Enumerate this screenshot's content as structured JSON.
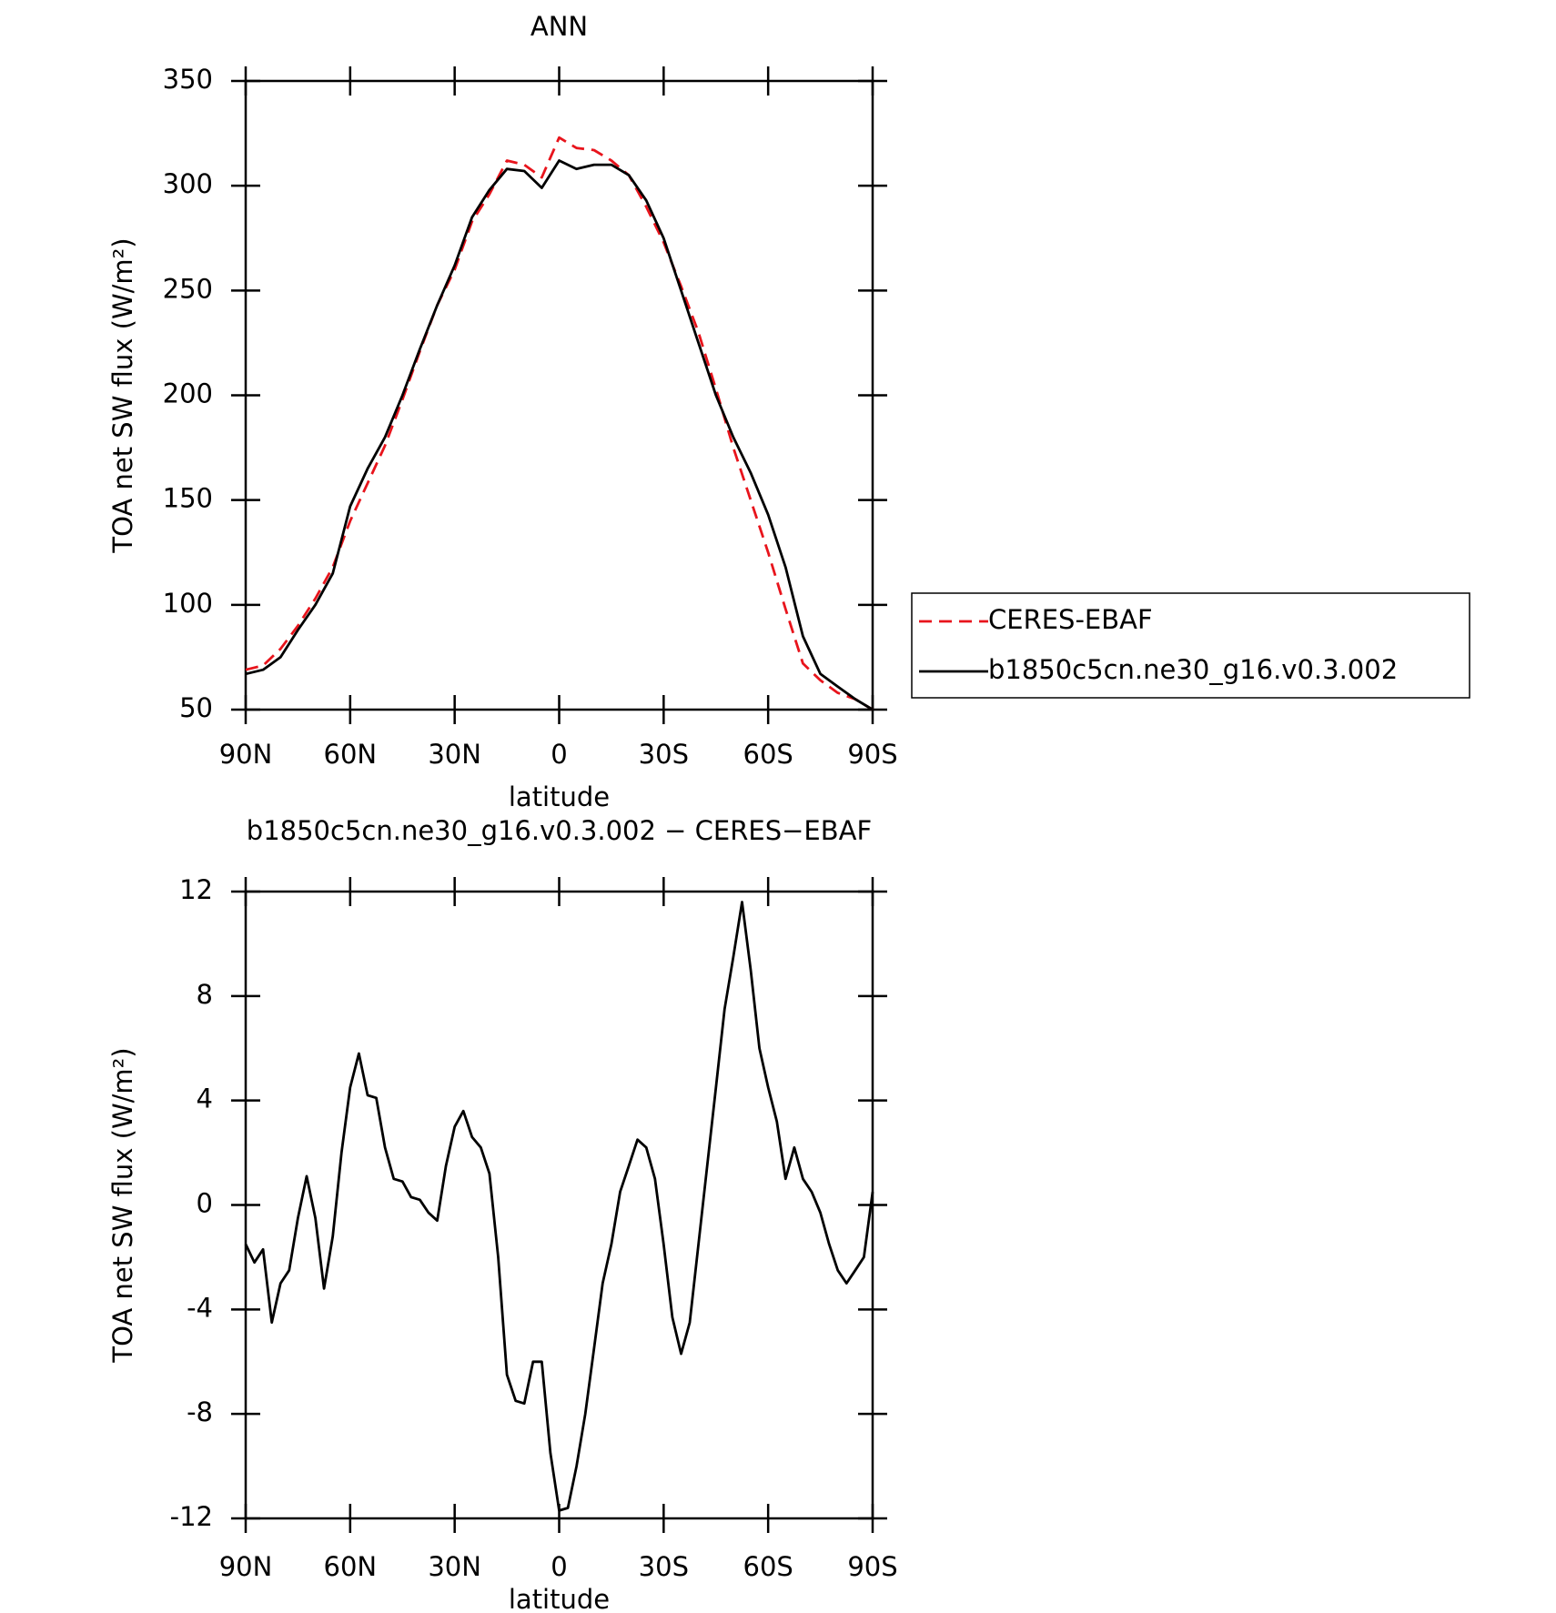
{
  "chart_data": [
    {
      "type": "line",
      "title": "ANN",
      "x_label": "latitude",
      "y_label": "TOA net SW flux (W/m²)",
      "x": [
        90,
        85,
        80,
        75,
        70,
        65,
        60,
        55,
        50,
        45,
        40,
        35,
        30,
        25,
        20,
        15,
        10,
        5,
        0,
        -5,
        -10,
        -15,
        -20,
        -25,
        -30,
        -35,
        -40,
        -45,
        -50,
        -55,
        -60,
        -65,
        -70,
        -75,
        -80,
        -85,
        -90
      ],
      "series": [
        {
          "name": "CERES-EBAF",
          "color": "#e8141c",
          "line_style": "dashed",
          "values": [
            69,
            71,
            79,
            90,
            103,
            118,
            140,
            158,
            176,
            198,
            221,
            243,
            260,
            283,
            296,
            312,
            310,
            304,
            323,
            318,
            317,
            312,
            305,
            290,
            273,
            252,
            230,
            203,
            175,
            150,
            125,
            98,
            72,
            64,
            58,
            55,
            50
          ]
        },
        {
          "name": "b1850c5cn.ne30_g16.v0.3.002",
          "color": "#000000",
          "line_style": "solid",
          "values": [
            67,
            69,
            75,
            88,
            100,
            115,
            147,
            165,
            180,
            200,
            222,
            243,
            262,
            285,
            298,
            308,
            307,
            299,
            312,
            308,
            310,
            310,
            305,
            293,
            275,
            250,
            225,
            200,
            180,
            163,
            143,
            118,
            85,
            67,
            61,
            55,
            50
          ]
        }
      ],
      "xlim": [
        90,
        -90
      ],
      "xticks": [
        {
          "value": 90,
          "label": "90N"
        },
        {
          "value": 60,
          "label": "60N"
        },
        {
          "value": 30,
          "label": "30N"
        },
        0,
        {
          "value": -30,
          "label": "30S"
        },
        {
          "value": -60,
          "label": "60S"
        },
        {
          "value": -90,
          "label": "90S"
        }
      ],
      "ylim": [
        50,
        350
      ],
      "yticks": [
        50,
        100,
        150,
        200,
        250,
        300,
        350
      ],
      "legend": "right"
    },
    {
      "type": "line",
      "title": "b1850c5cn.ne30_g16.v0.3.002 − CERES−EBAF",
      "x_label": "latitude",
      "y_label": "TOA net SW flux (W/m²)",
      "x": [
        90,
        87.5,
        85,
        82.5,
        80,
        77.5,
        75,
        72.5,
        70,
        67.5,
        65,
        62.5,
        60,
        57.5,
        55,
        52.5,
        50,
        47.5,
        45,
        42.5,
        40,
        37.5,
        35,
        32.5,
        30,
        27.5,
        25,
        22.5,
        20,
        17.5,
        15,
        12.5,
        10,
        7.5,
        5,
        2.5,
        0,
        -2.5,
        -5,
        -7.5,
        -10,
        -12.5,
        -15,
        -17.5,
        -20,
        -22.5,
        -25,
        -27.5,
        -30,
        -32.5,
        -35,
        -37.5,
        -40,
        -42.5,
        -45,
        -47.5,
        -50,
        -52.5,
        -55,
        -57.5,
        -60,
        -62.5,
        -65,
        -67.5,
        -70,
        -72.5,
        -75,
        -77.5,
        -80,
        -82.5,
        -85,
        -87.5,
        -90
      ],
      "series": [
        {
          "name": "b1850c5cn.ne30_g16.v0.3.002 − CERES−EBAF",
          "color": "#000000",
          "line_style": "solid",
          "values": [
            -1.5,
            -2.2,
            -1.7,
            -4.5,
            -3,
            -2.5,
            -0.5,
            1.1,
            -0.5,
            -3.2,
            -1.2,
            2,
            4.5,
            5.8,
            4.2,
            4.1,
            2.2,
            1,
            0.9,
            0.3,
            0.2,
            -0.3,
            -0.6,
            1.5,
            3,
            3.6,
            2.6,
            2.2,
            1.2,
            -2,
            -6.5,
            -7.5,
            -7.6,
            -6,
            -6,
            -9.5,
            -11.7,
            -11.6,
            -10,
            -8,
            -5.5,
            -3,
            -1.5,
            0.5,
            1.5,
            2.5,
            2.2,
            1,
            -1.5,
            -4.3,
            -5.7,
            -4.5,
            -1.5,
            1.5,
            4.5,
            7.5,
            9.5,
            11.6,
            9,
            6,
            4.5,
            3.2,
            1,
            2.2,
            1,
            0.5,
            -0.3,
            -1.5,
            -2.5,
            -3,
            -2.5,
            -2,
            0.5
          ]
        }
      ],
      "xlim": [
        90,
        -90
      ],
      "xticks": [
        {
          "value": 90,
          "label": "90N"
        },
        {
          "value": 60,
          "label": "60N"
        },
        {
          "value": 30,
          "label": "30N"
        },
        0,
        {
          "value": -30,
          "label": "30S"
        },
        {
          "value": -60,
          "label": "60S"
        },
        {
          "value": -90,
          "label": "90S"
        }
      ],
      "ylim": [
        -12,
        12
      ],
      "yticks": [
        -12,
        -8,
        -4,
        0,
        4,
        8,
        12
      ]
    }
  ]
}
